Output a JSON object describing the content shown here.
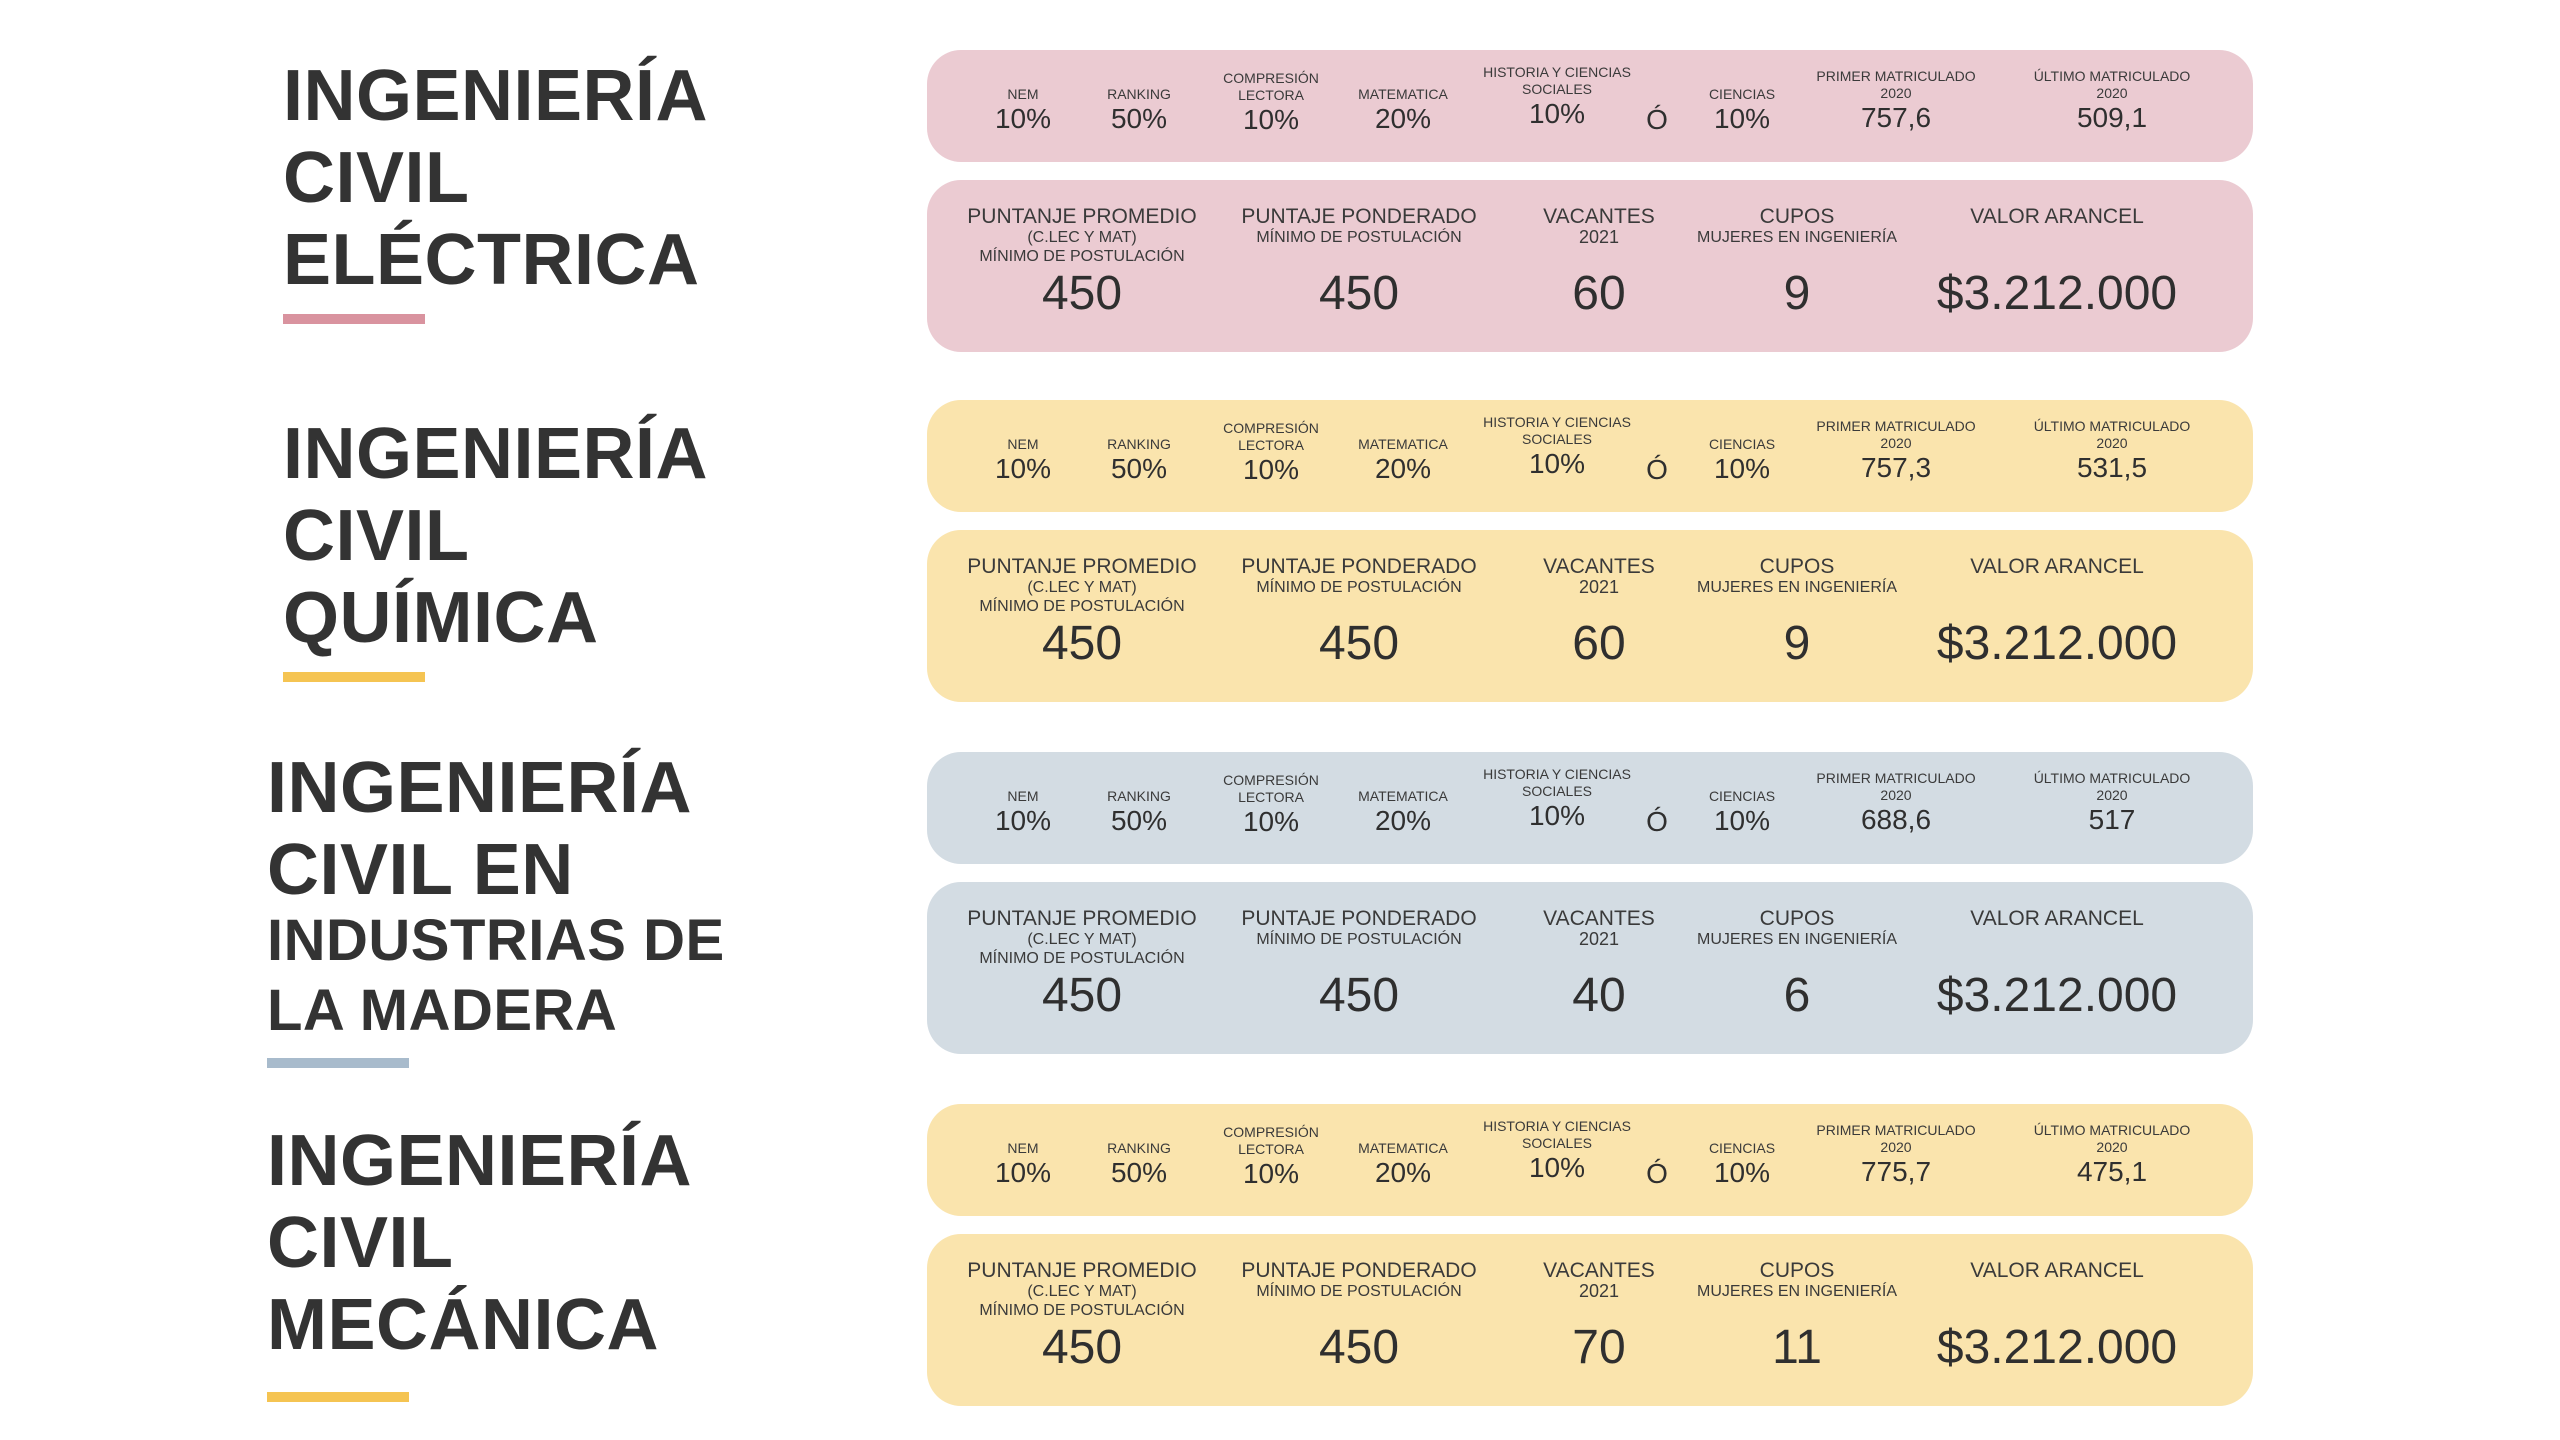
{
  "labels": {
    "nem": "NEM",
    "ranking": "RANKING",
    "comp_l1": "COMPRESIÓN",
    "comp_l2": "LECTORA",
    "matematica": "MATEMATICA",
    "hist_l1": "HISTORIA Y CIENCIAS",
    "hist_l2": "SOCIALES",
    "ciencias": "CIENCIAS",
    "primer_l1": "PRIMER MATRICULADO",
    "primer_l2": "2020",
    "ultimo_l1": "ÚLTIMO MATRICULADO",
    "ultimo_l2": "2020",
    "or": "Ó",
    "prom_l1": "PUNTANJE PROMEDIO",
    "prom_l2": "(C.LEC Y MAT)",
    "prom_l3": "MÍNIMO DE POSTULACIÓN",
    "pond_l1": "PUNTAJE PONDERADO",
    "pond_l2": "MÍNIMO DE POSTULACIÓN",
    "vac_l1": "VACANTES",
    "vac_l2": "2021",
    "cupos_l1": "CUPOS",
    "cupos_l2": "MUJERES EN INGENIERÍA",
    "arancel": "VALOR ARANCEL"
  },
  "colors": {
    "pink": "#ebcbd2",
    "pink_line": "#d9939f",
    "yellow": "#fae4ad",
    "yellow_line": "#f5c452",
    "blue": "#d3dce3",
    "blue_line": "#a8bbcc"
  },
  "programs": [
    {
      "title": [
        "INGENIERÍA",
        "CIVIL",
        "ELÉCTRICA"
      ],
      "weights": {
        "nem": "10%",
        "ranking": "50%",
        "comp": "10%",
        "mat": "20%",
        "hist": "10%",
        "cien": "10%"
      },
      "primer": "757,6",
      "ultimo": "509,1",
      "promedio": "450",
      "ponderado": "450",
      "vacantes": "60",
      "cupos": "9",
      "arancel": "$3.212.000"
    },
    {
      "title": [
        "INGENIERÍA",
        "CIVIL",
        "QUÍMICA"
      ],
      "weights": {
        "nem": "10%",
        "ranking": "50%",
        "comp": "10%",
        "mat": "20%",
        "hist": "10%",
        "cien": "10%"
      },
      "primer": "757,3",
      "ultimo": "531,5",
      "promedio": "450",
      "ponderado": "450",
      "vacantes": "60",
      "cupos": "9",
      "arancel": "$3.212.000"
    },
    {
      "title": [
        "INGENIERÍA",
        "CIVIL EN",
        "INDUSTRIAS DE",
        "LA MADERA"
      ],
      "weights": {
        "nem": "10%",
        "ranking": "50%",
        "comp": "10%",
        "mat": "20%",
        "hist": "10%",
        "cien": "10%"
      },
      "primer": "688,6",
      "ultimo": "517",
      "promedio": "450",
      "ponderado": "450",
      "vacantes": "40",
      "cupos": "6",
      "arancel": "$3.212.000"
    },
    {
      "title": [
        "INGENIERÍA",
        "CIVIL",
        "MECÁNICA"
      ],
      "weights": {
        "nem": "10%",
        "ranking": "50%",
        "comp": "10%",
        "mat": "20%",
        "hist": "10%",
        "cien": "10%"
      },
      "primer": "775,7",
      "ultimo": "475,1",
      "promedio": "450",
      "ponderado": "450",
      "vacantes": "70",
      "cupos": "11",
      "arancel": "$3.212.000"
    }
  ]
}
